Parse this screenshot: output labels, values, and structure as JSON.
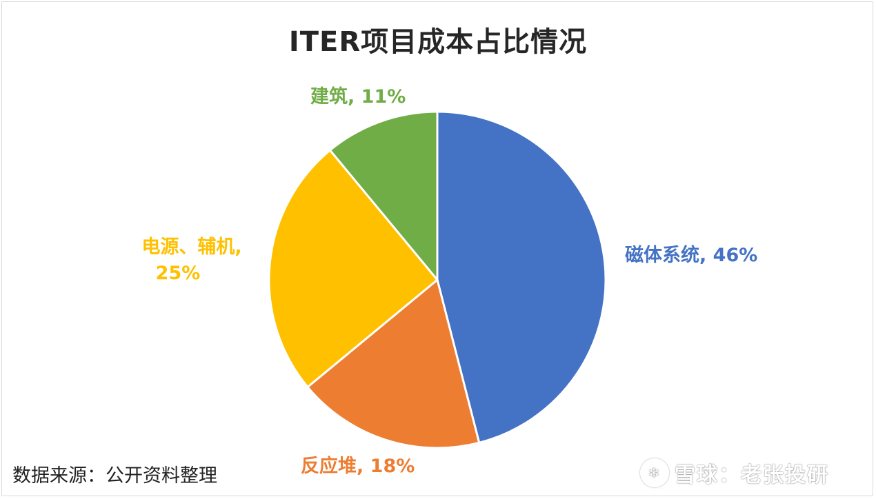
{
  "chart_data": {
    "type": "pie",
    "title": "ITER项目成本占比情况",
    "slices": [
      {
        "name": "磁体系统",
        "value": 46,
        "label": "磁体系统, 46%",
        "color": "#4472C4"
      },
      {
        "name": "反应堆",
        "value": 18,
        "label": "反应堆, 18%",
        "color": "#ED7D31"
      },
      {
        "name": "电源、辅机",
        "value": 25,
        "label_line1": "电源、辅机,",
        "label_line2": "25%",
        "color": "#FFC000"
      },
      {
        "name": "建筑",
        "value": 11,
        "label": "建筑, 11%",
        "color": "#70AD47"
      }
    ],
    "legend": "none",
    "data_labels": "outside"
  },
  "footer": {
    "source": "数据来源：公开资料整理",
    "watermark": "雪球：老张投研",
    "watermark_icon": "snowball-logo-icon"
  }
}
